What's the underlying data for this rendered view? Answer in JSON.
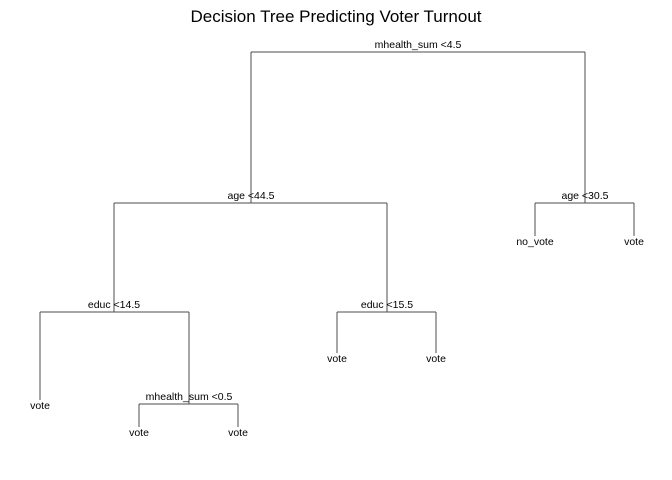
{
  "title": "Decision Tree Predicting Voter Turnout",
  "tree": {
    "root": "mhealth_sum <4.5",
    "left": {
      "split": "age <44.5",
      "left": {
        "split": "educ <14.5",
        "left_leaf": "vote",
        "right": {
          "split": "mhealth_sum <0.5",
          "left_leaf": "vote",
          "right_leaf": "vote"
        }
      },
      "right": {
        "split": "educ <15.5",
        "left_leaf": "vote",
        "right_leaf": "vote"
      }
    },
    "right": {
      "split": "age <30.5",
      "left_leaf": "no_vote",
      "right_leaf": "vote"
    }
  }
}
